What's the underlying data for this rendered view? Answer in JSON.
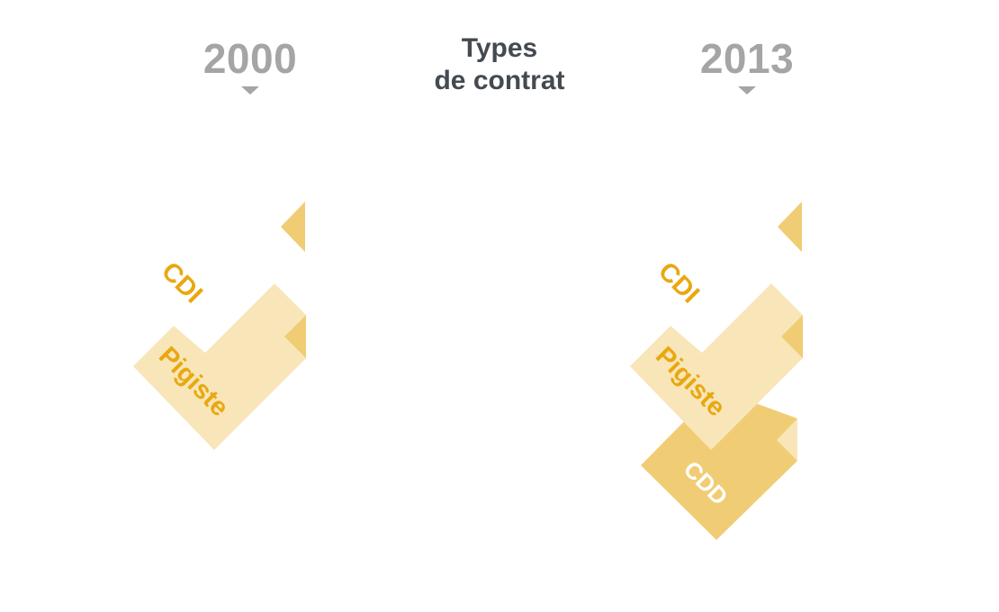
{
  "header": {
    "title_line1": "Types",
    "title_line2": "de contrat",
    "year_left": "2000",
    "year_right": "2013"
  },
  "colors": {
    "year": "#a5a5a5",
    "title": "#444a50",
    "cdi_shape": "#f8e6b9",
    "fold": "#f0cd74",
    "pigiste_shape": "#f8e6b9",
    "cdd_shape": "#f0cd74",
    "cdd_fold": "#f8e6b9",
    "label_dark": "#e9a811",
    "label_light": "#ffffff"
  },
  "panels": [
    {
      "year": "2000",
      "contracts": [
        {
          "type": "CDI",
          "label": "CDI"
        },
        {
          "type": "Pigiste",
          "label": "Pigiste"
        }
      ]
    },
    {
      "year": "2013",
      "contracts": [
        {
          "type": "CDI",
          "label": "CDI"
        },
        {
          "type": "Pigiste",
          "label": "Pigiste"
        },
        {
          "type": "CDD",
          "label": "CDD"
        }
      ]
    }
  ]
}
